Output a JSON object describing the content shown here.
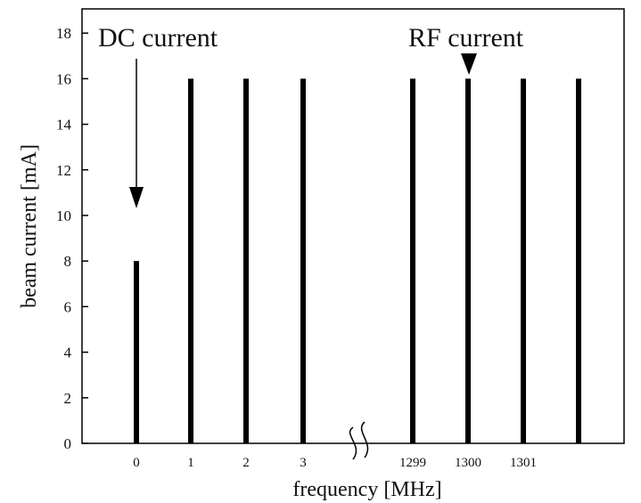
{
  "chart_data": {
    "type": "bar",
    "xlabel": "frequency [MHz]",
    "ylabel": "beam current [mA]",
    "ylim": [
      0,
      19
    ],
    "yticks": [
      0,
      2,
      4,
      6,
      8,
      10,
      12,
      14,
      16,
      18
    ],
    "grid": false,
    "broken_x_axis": true,
    "bars": [
      {
        "x_label": "0",
        "value": 8
      },
      {
        "x_label": "1",
        "value": 16
      },
      {
        "x_label": "2",
        "value": 16
      },
      {
        "x_label": "3",
        "value": 16
      },
      {
        "x_label": "1299",
        "value": 16
      },
      {
        "x_label": "1300",
        "value": 16
      },
      {
        "x_label": "1301",
        "value": 16
      },
      {
        "x_label": "",
        "value": 16
      }
    ],
    "annotations": [
      {
        "text": "DC current",
        "points_to": "0"
      },
      {
        "text": "RF current",
        "points_to": "1300"
      }
    ],
    "colors": {
      "bar": "#000000",
      "axis": "#000000",
      "text": "#111111"
    }
  }
}
